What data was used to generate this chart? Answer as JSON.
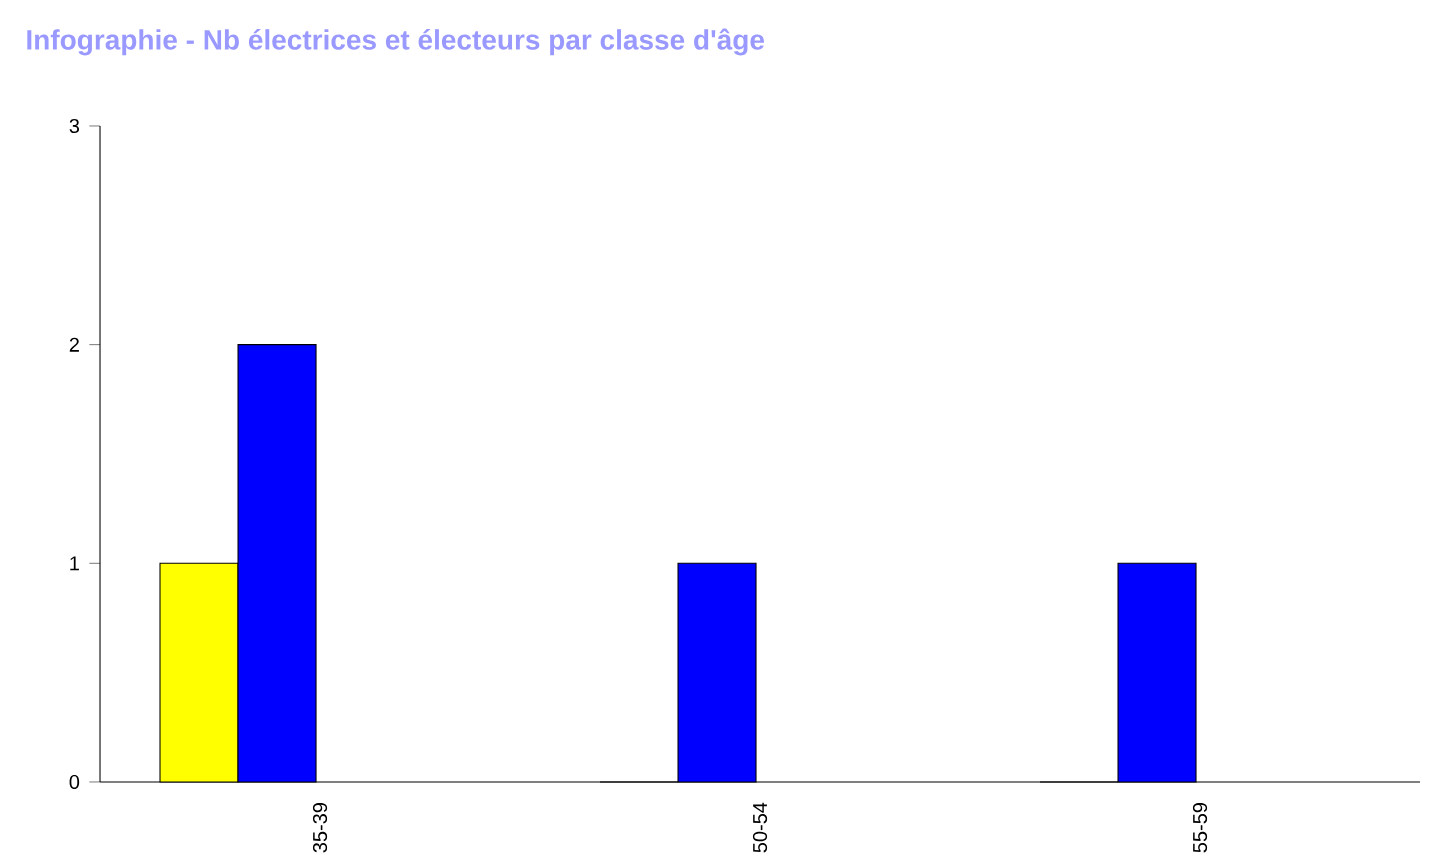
{
  "chart_data": {
    "type": "bar",
    "title": "Infographie - Nb électrices et électeurs par classe d'âge",
    "categories": [
      "35-39",
      "50-54",
      "55-59"
    ],
    "series": [
      {
        "color": "#ffff00",
        "values": [
          1,
          0,
          0
        ]
      },
      {
        "color": "#0000ff",
        "values": [
          2,
          1,
          1
        ]
      }
    ],
    "ylim": [
      0,
      3
    ],
    "yticks": [
      0,
      1,
      2,
      3
    ],
    "grid": false
  }
}
